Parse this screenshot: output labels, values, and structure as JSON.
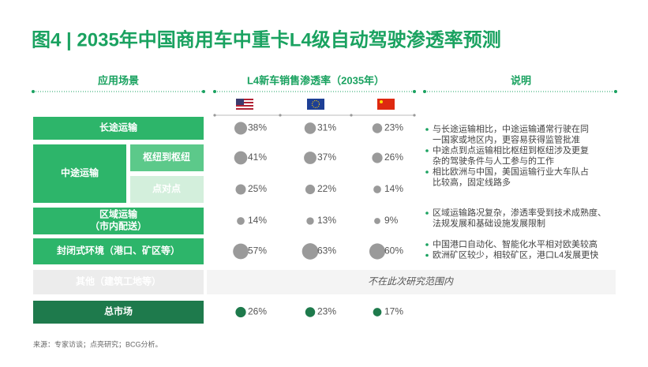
{
  "header": {
    "title": "图4 | 2035年中国商用车中重卡L4级自动驾驶渗透率预测"
  },
  "columns": [
    "应用场景",
    "L4新车销售渗透率（2035年）",
    "说明"
  ],
  "rows": [
    {
      "label": [
        "长途运输"
      ],
      "values": [
        {
          "value": 38,
          "label": "38%"
        },
        {
          "value": 31,
          "label": "31%"
        },
        {
          "value": 23,
          "label": "23%"
        }
      ]
    },
    {
      "label": [
        "中途运输"
      ],
      "subrows": [
        {
          "label": "枢纽到枢纽",
          "values": [
            {
              "value": 41,
              "label": "41%"
            },
            {
              "value": 37,
              "label": "37%"
            },
            {
              "value": 26,
              "label": "26%"
            }
          ]
        },
        {
          "label": "点对点",
          "values": [
            {
              "value": 25,
              "label": "25%"
            },
            {
              "value": 22,
              "label": "22%"
            },
            {
              "value": 14,
              "label": "14%"
            }
          ]
        }
      ]
    },
    {
      "label": [
        "区域运输",
        "（市内配送）"
      ],
      "values": [
        {
          "value": 14,
          "label": "14%"
        },
        {
          "value": 13,
          "label": "13%"
        },
        {
          "value": 9,
          "label": "9%"
        }
      ]
    },
    {
      "label": [
        "封闭式环境（港口、矿区等）"
      ],
      "values": [
        {
          "value": 57,
          "label": "57%"
        },
        {
          "value": 63,
          "label": "63%"
        },
        {
          "value": 60,
          "label": "60%"
        }
      ]
    },
    {
      "label": [
        "其他（建筑工地等）"
      ],
      "note": "不在此次研究范围内"
    },
    {
      "label": [
        "总市场"
      ],
      "values": [
        {
          "value": 26,
          "label": "26%"
        },
        {
          "value": 23,
          "label": "23%"
        },
        {
          "value": 17,
          "label": "17%"
        }
      ]
    }
  ],
  "notes": [
    [
      [
        "与长途运输相比，中途运输通常行驶在同",
        "一国家或地区内，更容易获得监管批准"
      ],
      [
        "中途点到点运输相比枢纽到枢纽涉及更复",
        "杂的驾驶条件与人工参与的工作"
      ],
      [
        "相比欧洲与中国，美国运输行业大车队占",
        "比较高，固定线路多"
      ]
    ],
    [
      [
        "区域运输路况复杂，渗透率受到技术成熟度、",
        "法规发展和基础设施发展限制"
      ]
    ],
    [
      [
        "中国港口自动化、智能化水平相对欧美较高"
      ],
      [
        "欧洲矿区较少，相较矿区，港口L4发展更快"
      ]
    ]
  ],
  "source": "来源：专家访谈；点亮研究；BCG分析。"
}
